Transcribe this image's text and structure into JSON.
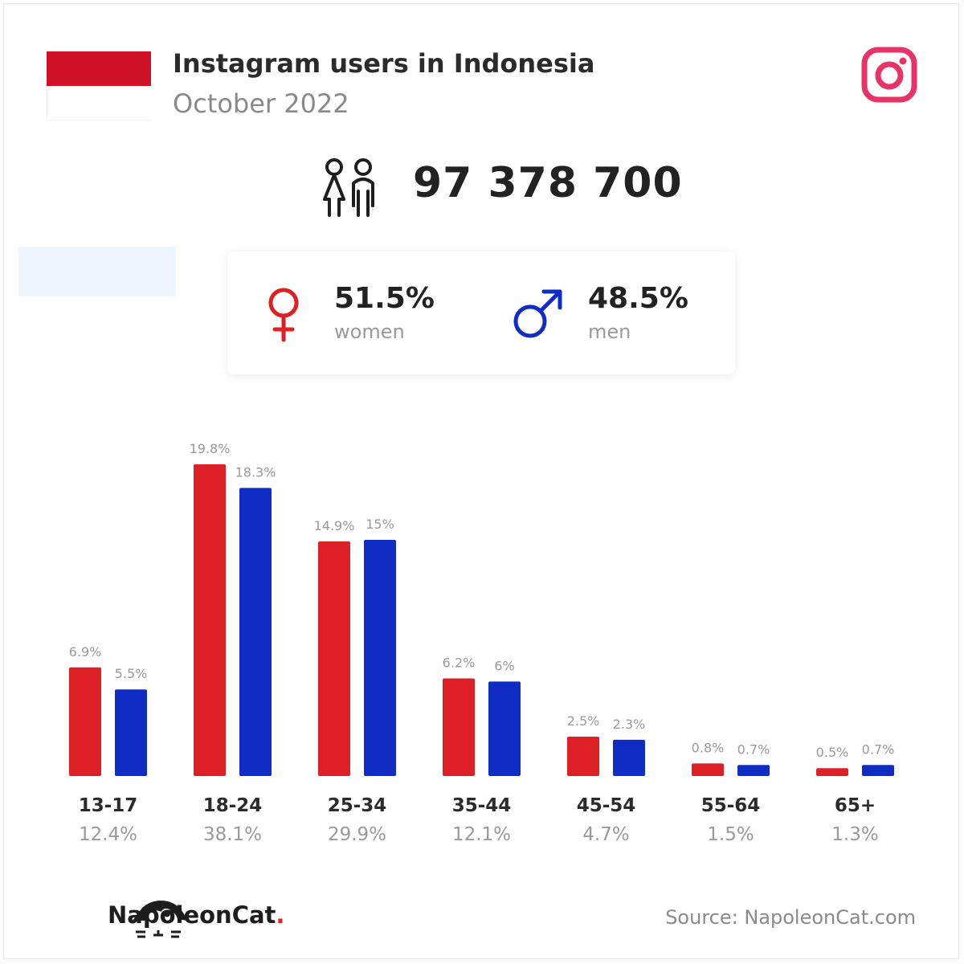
{
  "header": {
    "title": "Instagram users in Indonesia",
    "subtitle": "October 2022"
  },
  "summary": {
    "total_users": "97 378 700",
    "women_pct": "51.5%",
    "women_label": "women",
    "men_pct": "48.5%",
    "men_label": "men"
  },
  "colors": {
    "women": "#dd1f26",
    "men": "#0f2dc4",
    "flag_red": "#ce1126",
    "instagram": "#e8336a"
  },
  "chart_data": {
    "type": "bar",
    "categories": [
      "13-17",
      "18-24",
      "25-34",
      "35-44",
      "45-54",
      "55-64",
      "65+"
    ],
    "category_totals": [
      "12.4%",
      "38.1%",
      "29.9%",
      "12.1%",
      "4.7%",
      "1.5%",
      "1.3%"
    ],
    "series": [
      {
        "name": "women",
        "values": [
          6.9,
          19.8,
          14.9,
          6.2,
          2.5,
          0.8,
          0.5
        ],
        "labels": [
          "6.9%",
          "19.8%",
          "14.9%",
          "6.2%",
          "2.5%",
          "0.8%",
          "0.5%"
        ],
        "color": "#dd1f26"
      },
      {
        "name": "men",
        "values": [
          5.5,
          18.3,
          15,
          6,
          2.3,
          0.7,
          0.7
        ],
        "labels": [
          "5.5%",
          "18.3%",
          "15%",
          "6%",
          "2.3%",
          "0.7%",
          "0.7%"
        ],
        "color": "#0f2dc4"
      }
    ],
    "ylim": [
      0,
      19.8
    ],
    "grid": false,
    "legend": "none"
  },
  "footer": {
    "brand_name": "NapoleonCat",
    "brand_dot": ".",
    "source": "Source: NapoleonCat.com"
  },
  "icons": {
    "flag": "indonesia-flag-icon",
    "social": "instagram-icon",
    "users": "people-icon",
    "female": "female-symbol-icon",
    "male": "male-symbol-icon",
    "brand": "napoleoncat-logo-icon"
  }
}
